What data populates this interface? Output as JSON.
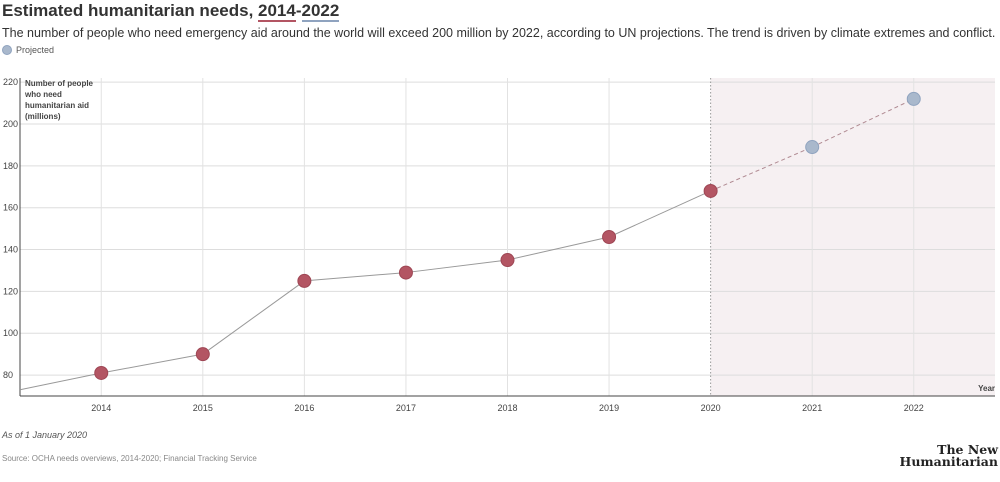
{
  "header": {
    "title_prefix": "Estimated humanitarian needs, ",
    "title_years_start": "2014",
    "title_years_sep": "-",
    "title_years_end": "2022",
    "subtitle": "The number of people who need emergency aid around the world will exceed 200 million by 2022, according to UN projections. The trend is driven by climate extremes and conflict."
  },
  "legend": {
    "projected_label": "Projected"
  },
  "footer": {
    "note": "As of 1 January 2020",
    "source": "Source: OCHA needs overviews, 2014-2020; Financial Tracking Service",
    "logo_line1": "The New",
    "logo_line2": "Humanitarian"
  },
  "colors": {
    "actual": "#b35563",
    "projected": "#a9b8cc",
    "projected_stroke": "#8fa3bf",
    "line": "#999999",
    "shade": "#f6f0f2"
  },
  "chart_data": {
    "type": "line",
    "title": "Estimated humanitarian needs, 2014-2022",
    "ylabel": [
      "Number of people",
      "who need",
      "humanitarian aid",
      "(millions)"
    ],
    "xlabel": "Year",
    "x": [
      2014,
      2015,
      2016,
      2017,
      2018,
      2019,
      2020,
      2021,
      2022
    ],
    "y": [
      81,
      90,
      125,
      129,
      135,
      146,
      168,
      189,
      212
    ],
    "projected_from": 2021,
    "shaded_region_start": 2020,
    "xlim": [
      2013.2,
      2022.8
    ],
    "ylim": [
      70,
      222
    ],
    "yticks": [
      80,
      100,
      120,
      140,
      160,
      180,
      200,
      220
    ],
    "xticks": [
      2014,
      2015,
      2016,
      2017,
      2018,
      2019,
      2020,
      2021,
      2022
    ],
    "line_start": {
      "x": 2013.2,
      "y": 73
    },
    "grid": true,
    "legend": "top-left"
  }
}
